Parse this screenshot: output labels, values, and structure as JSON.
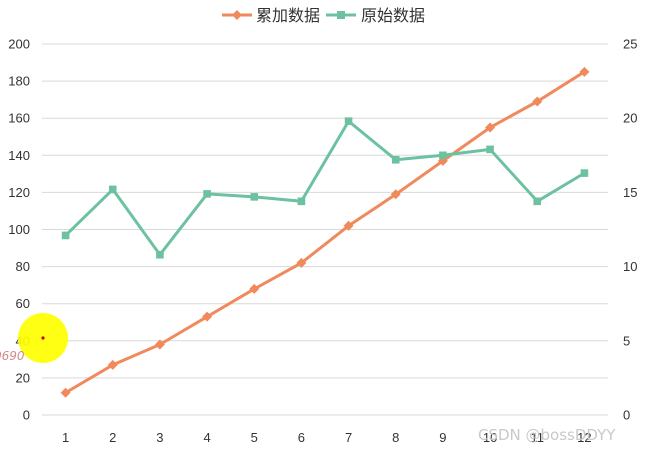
{
  "chart_data": {
    "type": "line",
    "categories": [
      "1",
      "2",
      "3",
      "4",
      "5",
      "6",
      "7",
      "8",
      "9",
      "10",
      "11",
      "12"
    ],
    "series": [
      {
        "name": "累加数据",
        "axis": "left",
        "color": "#f08a5d",
        "marker": "diamond",
        "values": [
          12,
          27,
          38,
          53,
          68,
          82,
          102,
          119,
          137,
          155,
          169,
          185
        ]
      },
      {
        "name": "原始数据",
        "axis": "right",
        "color": "#6cc2a0",
        "marker": "square",
        "values": [
          12.1,
          15.2,
          10.8,
          14.9,
          14.7,
          14.4,
          19.8,
          17.2,
          17.5,
          17.9,
          14.4,
          16.3
        ]
      }
    ],
    "y_left": {
      "min": 0,
      "max": 200,
      "step": 20
    },
    "y_right": {
      "min": 0,
      "max": 25,
      "step": 5
    },
    "grid": true,
    "legend_position": "top-center"
  },
  "watermark": "CSDN @bossDDYY",
  "partial_label": "0690"
}
